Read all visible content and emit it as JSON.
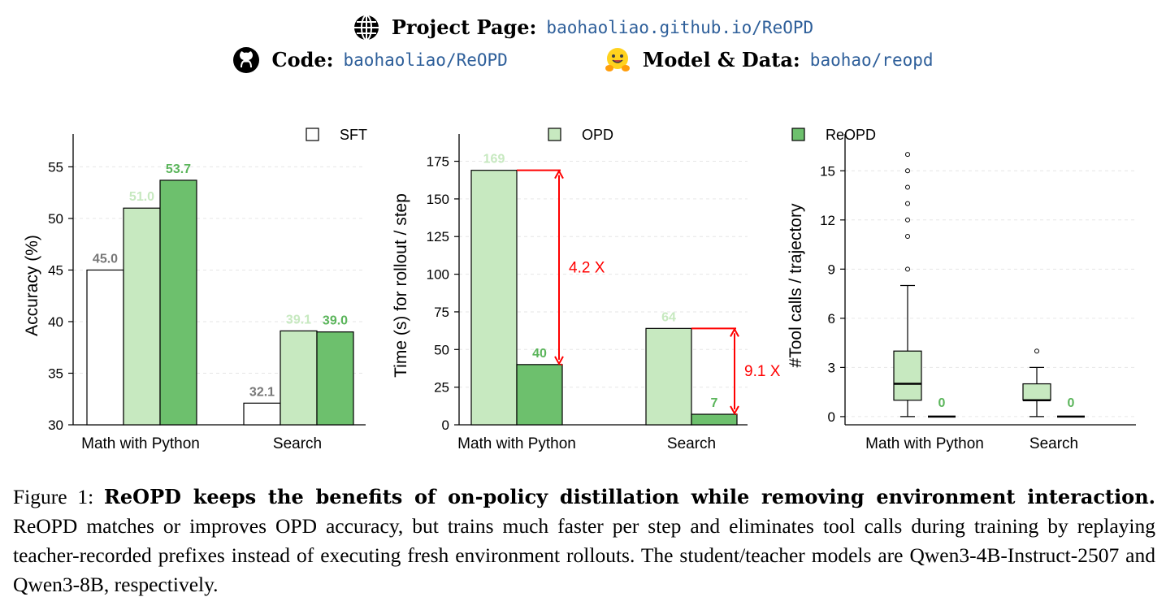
{
  "links": {
    "project": {
      "label": "Project Page:",
      "value": "baohaoliao.github.io/ReOPD",
      "icon": "globe-icon"
    },
    "code": {
      "label": "Code:",
      "value": "baohaoliao/ReOPD",
      "icon": "github-icon"
    },
    "model": {
      "label": "Model & Data:",
      "value": "baohao/reopd",
      "icon": "huggingface-icon"
    }
  },
  "legend": [
    "SFT",
    "OPD",
    "ReOPD"
  ],
  "colors": {
    "SFT": "#ffffff",
    "OPD": "#c7e9c0",
    "ReOPD": "#6dc06d",
    "sft_label": "#777777",
    "opd_label": "#c7e9c0",
    "reopd_label": "#5bb55b",
    "annotation": "#ff0000"
  },
  "chart_data": [
    {
      "type": "bar",
      "categories": [
        "Math with Python",
        "Search"
      ],
      "series": [
        {
          "name": "SFT",
          "values": [
            45.0,
            32.1
          ]
        },
        {
          "name": "OPD",
          "values": [
            51.0,
            39.1
          ]
        },
        {
          "name": "ReOPD",
          "values": [
            53.7,
            39.0
          ]
        }
      ],
      "value_labels": [
        [
          "45.0",
          "32.1"
        ],
        [
          "51.0",
          "39.1"
        ],
        [
          "53.7",
          "39.0"
        ]
      ],
      "ylabel": "Accuracy (%)",
      "ylim": [
        30,
        57
      ],
      "yticks": [
        30,
        35,
        40,
        45,
        50,
        55
      ]
    },
    {
      "type": "bar",
      "categories": [
        "Math with Python",
        "Search"
      ],
      "series": [
        {
          "name": "OPD",
          "values": [
            169,
            64
          ]
        },
        {
          "name": "ReOPD",
          "values": [
            40,
            7
          ]
        }
      ],
      "value_labels": [
        [
          "169",
          "64"
        ],
        [
          "40",
          "7"
        ]
      ],
      "annotations": [
        "4.2 X",
        "9.1 X"
      ],
      "ylabel": "Time (s) for rollout / step",
      "ylim": [
        0,
        185
      ],
      "yticks": [
        0,
        25,
        50,
        75,
        100,
        125,
        150,
        175
      ]
    },
    {
      "type": "box",
      "categories": [
        "Math with Python",
        "Search"
      ],
      "series": [
        {
          "name": "OPD",
          "boxes": [
            {
              "min": 0,
              "q1": 1,
              "median": 2,
              "q3": 4,
              "max": 8,
              "outliers": [
                9,
                11,
                12,
                13,
                14,
                15,
                16
              ]
            },
            {
              "min": 0,
              "q1": 1,
              "median": 1,
              "q3": 2,
              "max": 3,
              "outliers": [
                4
              ]
            }
          ]
        },
        {
          "name": "ReOPD",
          "boxes": [
            {
              "min": 0,
              "q1": 0,
              "median": 0,
              "q3": 0,
              "max": 0,
              "outliers": []
            },
            {
              "min": 0,
              "q1": 0,
              "median": 0,
              "q3": 0,
              "max": 0,
              "outliers": []
            }
          ]
        }
      ],
      "value_labels": [
        "0",
        "0"
      ],
      "ylabel": "#Tool calls / trajectory",
      "ylim": [
        -0.5,
        16.5
      ],
      "yticks": [
        0,
        3,
        6,
        9,
        12,
        15
      ]
    }
  ],
  "caption": {
    "prefix": "Figure 1: ",
    "bold": "ReOPD keeps the benefits of on-policy distillation while removing environment interaction.",
    "text": " ReOPD matches or improves OPD accuracy, but trains much faster per step and eliminates tool calls during training by replaying teacher-recorded prefixes instead of executing fresh environment rollouts. The student/teacher models are Qwen3-4B-Instruct-2507 and Qwen3-8B, respectively."
  }
}
